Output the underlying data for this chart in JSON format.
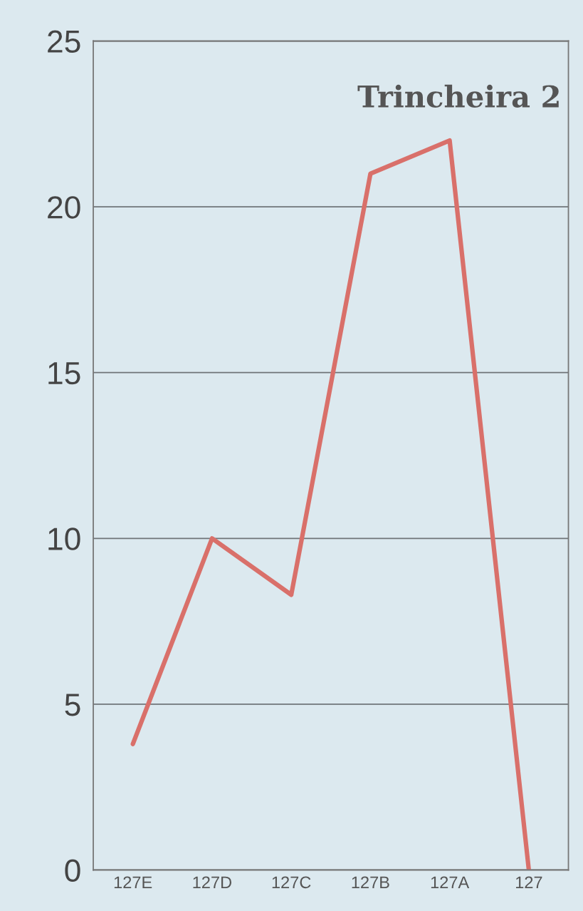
{
  "chart_data": {
    "type": "line",
    "title": "Trincheira 2",
    "categories": [
      "127E",
      "127D",
      "127C",
      "127B",
      "127A",
      "127"
    ],
    "values": [
      3.8,
      10,
      8.3,
      21,
      22,
      0
    ],
    "color": "#d9706a",
    "ylim": [
      0,
      25
    ],
    "yticks": [
      0,
      5,
      10,
      15,
      20,
      25
    ],
    "grid": "y",
    "marker": "none",
    "line_style": "solid"
  }
}
